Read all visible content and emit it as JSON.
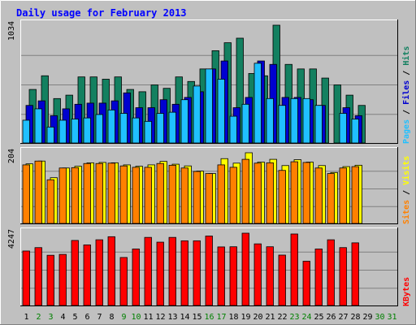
{
  "chart_data": {
    "type": "bar",
    "title": "Daily usage for February 2013",
    "days": [
      "1",
      "2",
      "3",
      "4",
      "5",
      "6",
      "7",
      "8",
      "9",
      "10",
      "11",
      "12",
      "13",
      "14",
      "15",
      "16",
      "17",
      "18",
      "19",
      "20",
      "21",
      "22",
      "23",
      "24",
      "25",
      "26",
      "27",
      "28",
      "29",
      "30",
      "31"
    ],
    "weekend_days": [
      "2",
      "3",
      "9",
      "10",
      "16",
      "17",
      "23",
      "24",
      "30",
      "31"
    ],
    "panels": [
      {
        "id": "pages",
        "ymax": 1034,
        "ymax_label": "1034",
        "legend": [
          "Pages",
          "Files",
          "Hits"
        ],
        "series": [
          {
            "name": "Hits",
            "color": "#138060",
            "values": [
              470,
              590,
              390,
              420,
              580,
              580,
              560,
              580,
              470,
              450,
              510,
              480,
              580,
              540,
              650,
              810,
              880,
              920,
              610,
              590,
              1034,
              690,
              650,
              650,
              570,
              510,
              420,
              330,
              0,
              0,
              0
            ]
          },
          {
            "name": "Files",
            "color": "#0000d0",
            "values": [
              330,
              370,
              240,
              300,
              340,
              350,
              350,
              370,
              440,
              310,
              310,
              380,
              340,
              400,
              450,
              650,
              720,
              310,
              400,
              720,
              690,
              400,
              400,
              380,
              330,
              0,
              310,
              240,
              0,
              0,
              0
            ]
          },
          {
            "name": "Pages",
            "color": "#20c0ff",
            "values": [
              200,
              300,
              140,
              200,
              210,
              220,
              250,
              290,
              260,
              220,
              190,
              260,
              270,
              380,
              500,
              650,
              560,
              235,
              340,
              700,
              390,
              330,
              390,
              390,
              330,
              0,
              260,
              210,
              0,
              0,
              0
            ]
          }
        ]
      },
      {
        "id": "visits",
        "ymax": 204,
        "ymax_label": "204",
        "legend": [
          "Sites",
          "Visits"
        ],
        "series": [
          {
            "name": "Visits",
            "color": "#ffff00",
            "values": [
              172,
              180,
              132,
              160,
              165,
              175,
              176,
              175,
              169,
              165,
              169,
              179,
              171,
              166,
              151,
              144,
              187,
              174,
              204,
              177,
              185,
              167,
              184,
              177,
              167,
              147,
              164,
              168,
              0,
              0,
              0
            ]
          },
          {
            "name": "Sites",
            "color": "#ff8000",
            "values": [
              169,
              180,
              126,
              160,
              161,
              173,
              173,
              174,
              166,
              162,
              162,
              173,
              168,
              160,
              150,
              144,
              169,
              162,
              185,
              174,
              175,
              153,
              178,
              176,
              160,
              144,
              160,
              164,
              0,
              0,
              0
            ]
          }
        ]
      },
      {
        "id": "kbytes",
        "ymax": 4247,
        "ymax_label": "4247",
        "legend": [
          "KBytes"
        ],
        "series": [
          {
            "name": "KBytes",
            "color": "#ff0000",
            "values": [
              3200,
              3400,
              2950,
              3000,
              3820,
              3560,
              3860,
              4040,
              2820,
              3320,
              4000,
              3720,
              4000,
              3800,
              3800,
              4080,
              3440,
              3450,
              4247,
              3620,
              3450,
              2960,
              4200,
              2600,
              3320,
              3860,
              3400,
              3680,
              0,
              0,
              0
            ]
          }
        ]
      }
    ]
  }
}
